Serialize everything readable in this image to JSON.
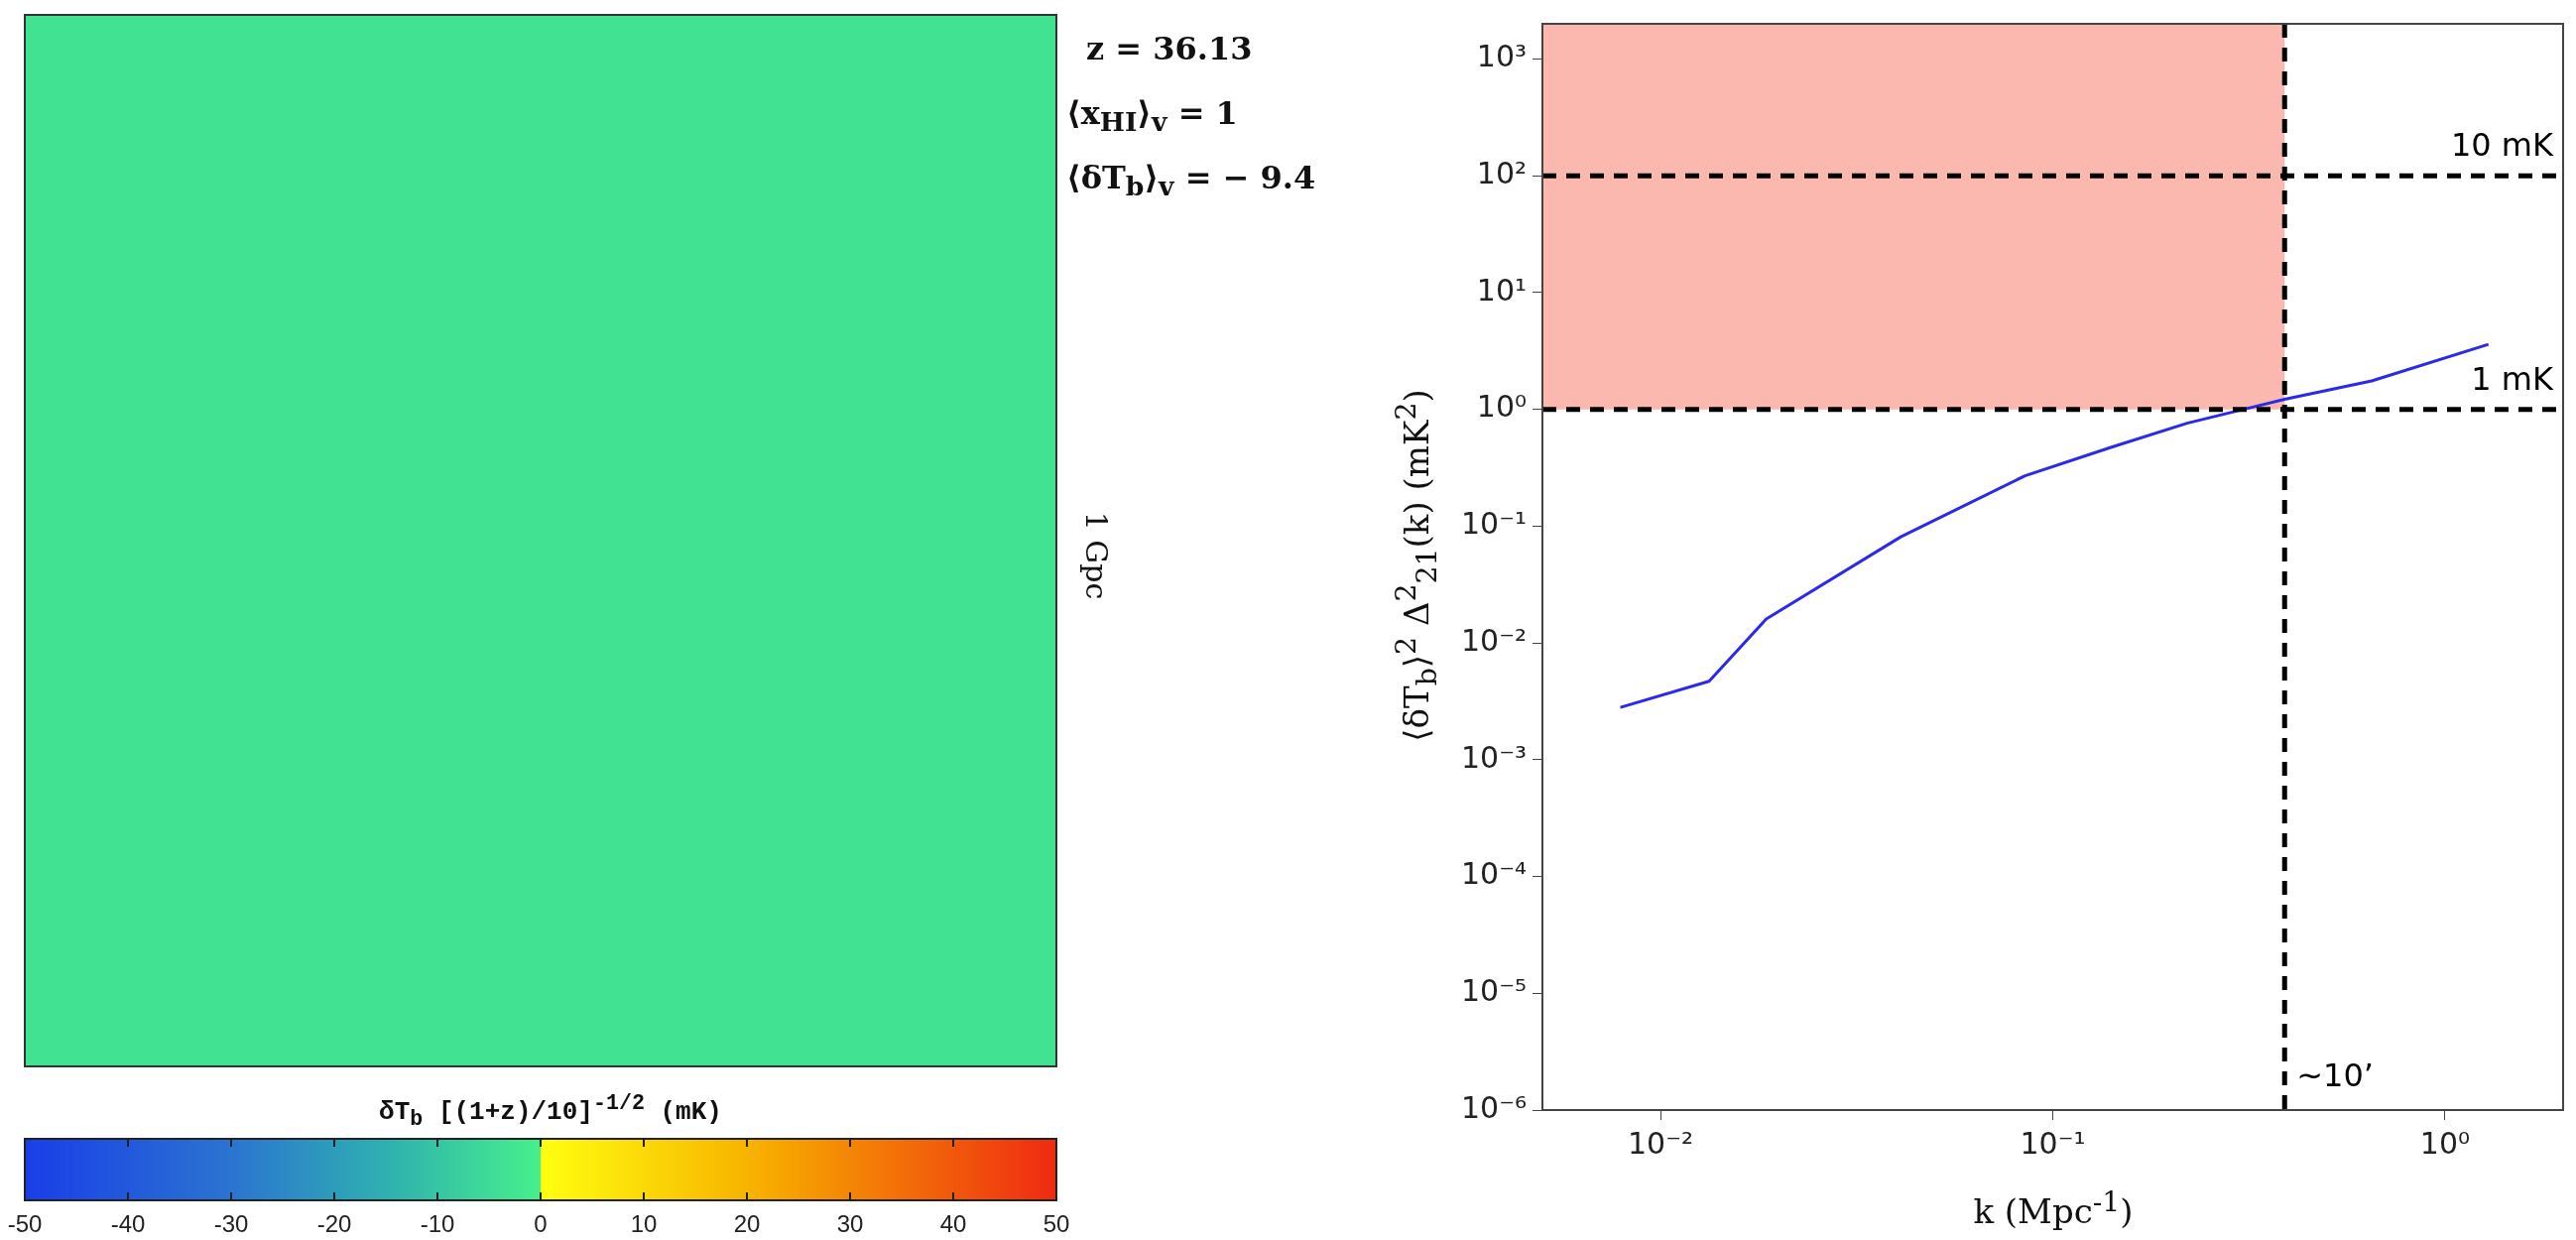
{
  "chart_data": [
    {
      "type": "heatmap",
      "categories": [
        null,
        null,
        null,
        null
      ],
      "y_categories": [
        null,
        null,
        null,
        null
      ],
      "cells": [
        [
          -3,
          -3,
          -3,
          -3
        ],
        [
          -3,
          -3,
          -3,
          -3
        ],
        [
          -3,
          -3,
          -3,
          -3
        ],
        [
          -3,
          -3,
          -3,
          -3
        ]
      ],
      "clim": [
        -50,
        50
      ],
      "cticks": [
        -50,
        -40,
        -30,
        -20,
        -10,
        0,
        10,
        20,
        30,
        40,
        50
      ],
      "clabel": "δT$_{b}$  [(1+z)/10]$^{-1/2}$  (mK)",
      "tick_labels": false,
      "annotations": [
        "z = 36.13",
        "⟨x$_{HI}$⟩$_{v}$ = 1",
        "⟨δT$_{b}$⟩$_{v}$ = − 9.4",
        "1 Gpc"
      ]
    },
    {
      "type": "line",
      "xlabel": "k (Mpc$^{-1}$)",
      "ylabel": "⟨δT$_{b}$⟩$^{2}$ Δ$^{2}$$_{21}$(k) (mK$^{2}$)",
      "log": "xy",
      "grid": false,
      "legend": false,
      "xlim": [
        0.005,
        2
      ],
      "ylim": [
        1e-06,
        2000
      ],
      "xticks": [
        {
          "value": 0.01,
          "label": "10⁻²"
        },
        {
          "value": 0.1,
          "label": "10⁻¹"
        },
        {
          "value": 1,
          "label": "10⁰"
        }
      ],
      "yticks": [
        {
          "value": 1e-06,
          "label": "10⁻⁶"
        },
        {
          "value": 1e-05,
          "label": "10⁻⁵"
        },
        {
          "value": 0.0001,
          "label": "10⁻⁴"
        },
        {
          "value": 0.001,
          "label": "10⁻³"
        },
        {
          "value": 0.01,
          "label": "10⁻²"
        },
        {
          "value": 0.1,
          "label": "10⁻¹"
        },
        {
          "value": 1,
          "label": "10⁰"
        },
        {
          "value": 10,
          "label": "10¹"
        },
        {
          "value": 100,
          "label": "10²"
        },
        {
          "value": 1000,
          "label": "10³"
        }
      ],
      "series": [
        {
          "color": "#2a2ae8",
          "x": [
            0.0079,
            0.0133,
            0.0186,
            0.041,
            0.085,
            0.14,
            0.22,
            0.39,
            0.65,
            1.29
          ],
          "values": [
            0.0028,
            0.0047,
            0.016,
            0.081,
            0.27,
            0.47,
            0.76,
            1.22,
            1.75,
            3.6
          ]
        }
      ],
      "ref_lines": [
        {
          "axis": "y",
          "value": 100,
          "label": "10 mK",
          "color": "#000000",
          "line_style": "dashed"
        },
        {
          "axis": "y",
          "value": 1,
          "label": "1 mK",
          "color": "#000000",
          "line_style": "dashed"
        },
        {
          "axis": "x",
          "value": 0.39,
          "label": "~10’",
          "color": "#000000",
          "line_style": "dashed"
        }
      ],
      "bands": [
        {
          "axis": "y",
          "from": 1,
          "to": 2000,
          "color": "#fbb8ae"
        }
      ]
    }
  ]
}
